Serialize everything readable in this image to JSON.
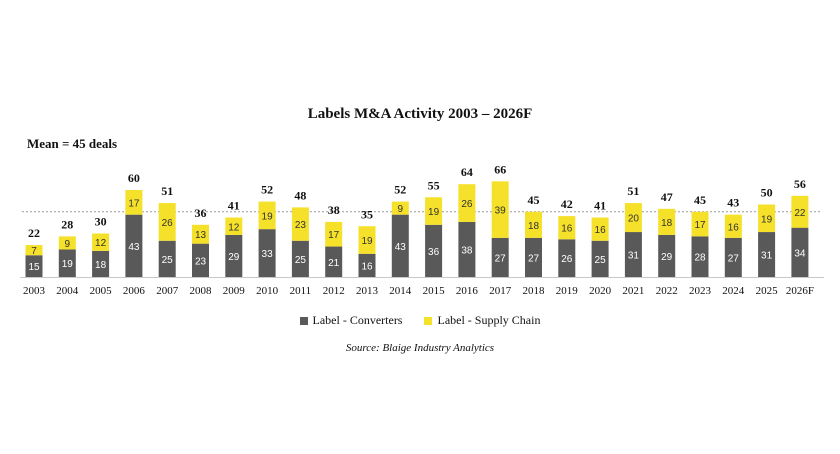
{
  "chart_data": {
    "type": "bar",
    "stacked": true,
    "title": "Labels M&A Activity 2003 – 2026F",
    "annotation": "Mean = 45 deals",
    "mean": 45,
    "categories": [
      "2003",
      "2004",
      "2005",
      "2006",
      "2007",
      "2008",
      "2009",
      "2010",
      "2011",
      "2012",
      "2013",
      "2014",
      "2015",
      "2016",
      "2017",
      "2018",
      "2019",
      "2020",
      "2021",
      "2022",
      "2023",
      "2024",
      "2025",
      "2026F"
    ],
    "series": [
      {
        "name": "Label - Converters",
        "color": "#595959",
        "values": [
          15,
          19,
          18,
          43,
          25,
          23,
          29,
          33,
          25,
          21,
          16,
          43,
          36,
          38,
          27,
          27,
          26,
          25,
          31,
          29,
          28,
          27,
          31,
          34
        ]
      },
      {
        "name": "Label - Supply Chain",
        "color": "#f5e02a",
        "values": [
          7,
          9,
          12,
          17,
          26,
          13,
          12,
          19,
          23,
          17,
          19,
          9,
          19,
          26,
          39,
          18,
          16,
          16,
          20,
          18,
          17,
          16,
          19,
          22
        ]
      }
    ],
    "totals": [
      22,
      28,
      30,
      60,
      51,
      36,
      41,
      52,
      48,
      38,
      35,
      52,
      55,
      64,
      66,
      45,
      42,
      41,
      51,
      47,
      45,
      43,
      50,
      56
    ],
    "legend_position": "bottom",
    "grid": false,
    "source": "Source: Blaige Industry Analytics"
  }
}
